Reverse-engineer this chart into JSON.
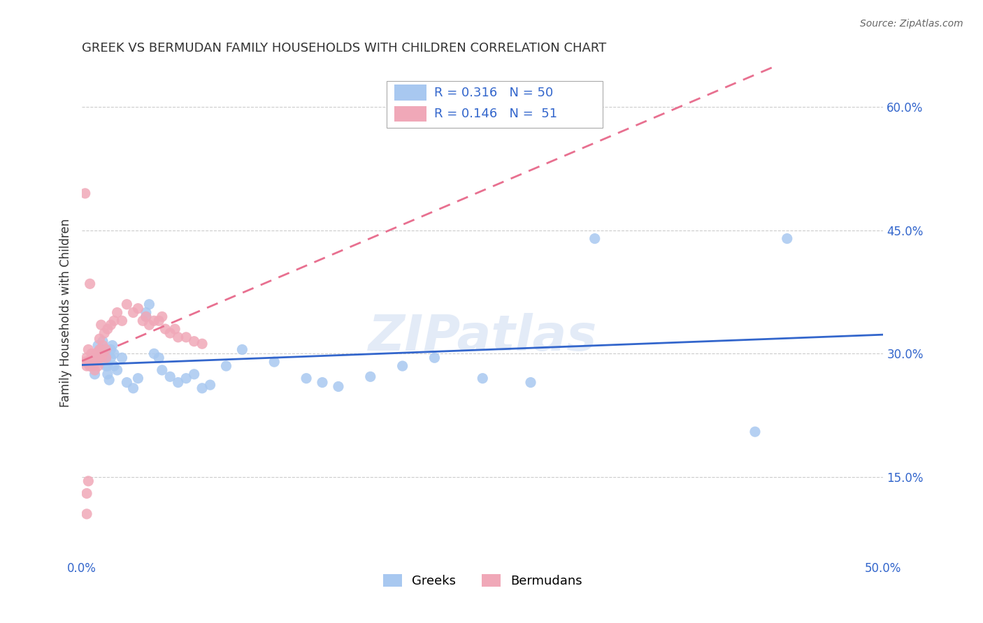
{
  "title": "GREEK VS BERMUDAN FAMILY HOUSEHOLDS WITH CHILDREN CORRELATION CHART",
  "source": "Source: ZipAtlas.com",
  "xlabel": "",
  "ylabel": "Family Households with Children",
  "xlim": [
    0.0,
    0.5
  ],
  "ylim": [
    0.05,
    0.65
  ],
  "xticks": [
    0.0,
    0.1,
    0.2,
    0.3,
    0.4,
    0.5
  ],
  "xticklabels": [
    "0.0%",
    "",
    "",
    "",
    "",
    "50.0%"
  ],
  "yticks": [
    0.15,
    0.3,
    0.45,
    0.6
  ],
  "yticklabels": [
    "15.0%",
    "30.0%",
    "45.0%",
    "60.0%"
  ],
  "greek_color": "#a8c8f0",
  "bermudan_color": "#f0a8b8",
  "greek_R": "0.316",
  "greek_N": "50",
  "bermudan_R": "0.146",
  "bermudan_N": "51",
  "legend_text_color": "#4488cc",
  "watermark": "ZIPatlas",
  "greek_x": [
    0.005,
    0.008,
    0.01,
    0.01,
    0.012,
    0.012,
    0.013,
    0.014,
    0.015,
    0.015,
    0.015,
    0.016,
    0.016,
    0.017,
    0.018,
    0.018,
    0.019,
    0.02,
    0.02,
    0.022,
    0.025,
    0.028,
    0.032,
    0.035,
    0.04,
    0.04,
    0.042,
    0.045,
    0.048,
    0.05,
    0.055,
    0.06,
    0.065,
    0.07,
    0.075,
    0.08,
    0.09,
    0.1,
    0.12,
    0.14,
    0.15,
    0.16,
    0.18,
    0.2,
    0.22,
    0.25,
    0.28,
    0.32,
    0.42,
    0.44
  ],
  "greek_y": [
    0.285,
    0.275,
    0.31,
    0.295,
    0.29,
    0.305,
    0.315,
    0.3,
    0.285,
    0.292,
    0.298,
    0.275,
    0.285,
    0.268,
    0.295,
    0.305,
    0.31,
    0.3,
    0.285,
    0.28,
    0.295,
    0.265,
    0.258,
    0.27,
    0.345,
    0.35,
    0.36,
    0.3,
    0.295,
    0.28,
    0.272,
    0.265,
    0.27,
    0.275,
    0.258,
    0.262,
    0.285,
    0.305,
    0.29,
    0.27,
    0.265,
    0.26,
    0.272,
    0.285,
    0.295,
    0.27,
    0.265,
    0.44,
    0.205,
    0.44
  ],
  "bermudan_x": [
    0.002,
    0.003,
    0.003,
    0.004,
    0.005,
    0.005,
    0.006,
    0.007,
    0.007,
    0.008,
    0.008,
    0.009,
    0.009,
    0.01,
    0.01,
    0.01,
    0.011,
    0.011,
    0.012,
    0.012,
    0.013,
    0.013,
    0.014,
    0.015,
    0.015,
    0.016,
    0.018,
    0.02,
    0.022,
    0.025,
    0.028,
    0.032,
    0.035,
    0.038,
    0.04,
    0.042,
    0.045,
    0.048,
    0.05,
    0.052,
    0.055,
    0.058,
    0.06,
    0.065,
    0.07,
    0.075,
    0.002,
    0.003,
    0.003,
    0.004,
    0.005
  ],
  "bermudan_y": [
    0.29,
    0.295,
    0.285,
    0.305,
    0.285,
    0.292,
    0.3,
    0.285,
    0.295,
    0.28,
    0.29,
    0.295,
    0.3,
    0.285,
    0.295,
    0.302,
    0.305,
    0.318,
    0.295,
    0.335,
    0.3,
    0.31,
    0.325,
    0.305,
    0.295,
    0.33,
    0.335,
    0.34,
    0.35,
    0.34,
    0.36,
    0.35,
    0.355,
    0.34,
    0.345,
    0.335,
    0.34,
    0.34,
    0.345,
    0.33,
    0.325,
    0.33,
    0.32,
    0.32,
    0.315,
    0.312,
    0.495,
    0.13,
    0.105,
    0.145,
    0.385
  ]
}
